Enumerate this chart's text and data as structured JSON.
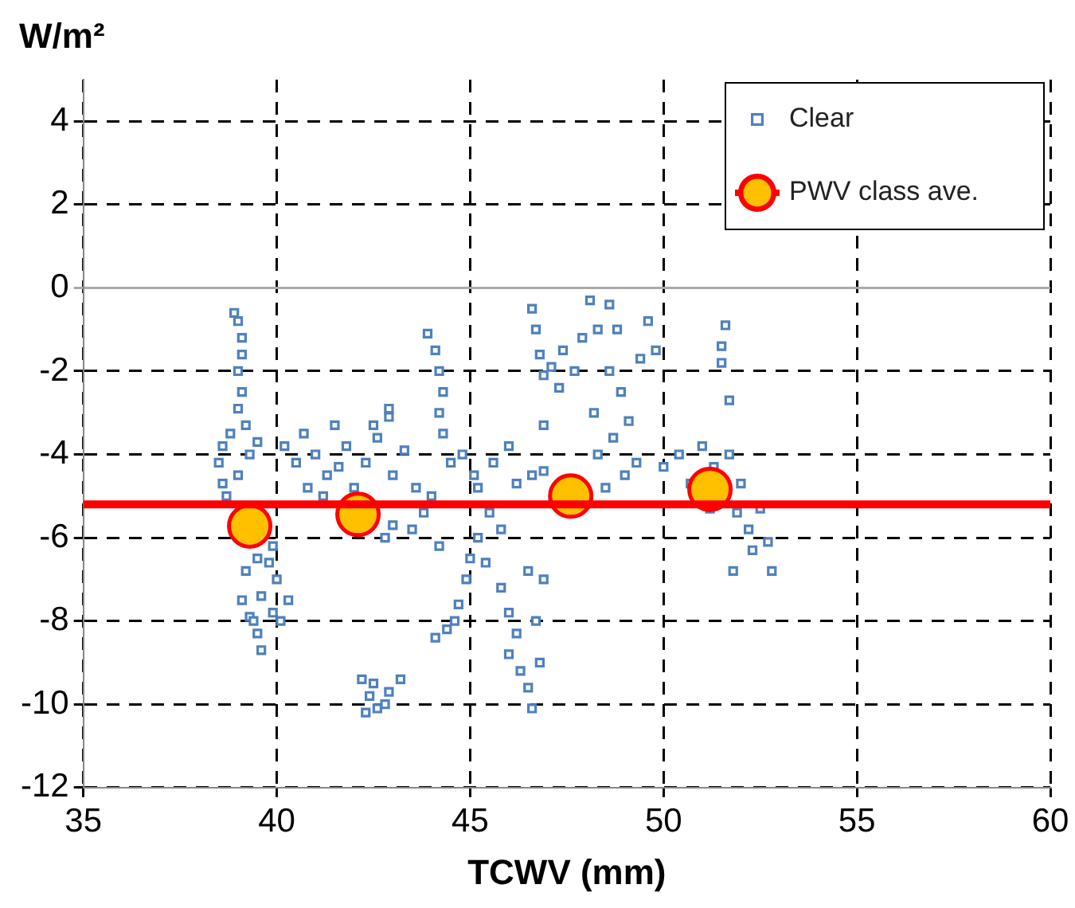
{
  "chart_data": {
    "type": "scatter",
    "xlabel": "TCWV (mm)",
    "ylabel": "W/m²",
    "xlim": [
      35,
      60
    ],
    "xticks": [
      35,
      40,
      45,
      50,
      55,
      60
    ],
    "ylim": [
      -12,
      5
    ],
    "yticks": [
      -12,
      -10,
      -8,
      -6,
      -4,
      -2,
      0,
      2,
      4
    ],
    "grid": true,
    "legend": "top right",
    "ref_lines": [
      {
        "axis": "y",
        "value": -5.2,
        "color": "#ff0000"
      }
    ],
    "series": [
      {
        "name": "Clear",
        "color": "#4f81bd",
        "marker": "square",
        "x": [
          38.9,
          39.0,
          39.1,
          39.1,
          39.0,
          39.1,
          39.0,
          39.2,
          38.8,
          38.6,
          38.5,
          38.6,
          38.7,
          39.0,
          39.3,
          39.5,
          39.2,
          39.5,
          39.8,
          40.0,
          39.1,
          39.3,
          39.6,
          39.9,
          40.3,
          39.5,
          39.6,
          39.4,
          40.1,
          39.9,
          40.2,
          40.5,
          40.8,
          41.0,
          41.3,
          41.6,
          41.8,
          42.0,
          42.3,
          42.6,
          42.9,
          42.5,
          43.0,
          43.3,
          43.6,
          43.8,
          43.5,
          44.0,
          44.2,
          43.0,
          42.8,
          41.2,
          41.5,
          40.7,
          42.9,
          43.9,
          44.1,
          44.2,
          44.3,
          44.2,
          44.3,
          44.5,
          44.8,
          45.1,
          42.2,
          42.4,
          42.6,
          42.9,
          43.2,
          42.5,
          42.8,
          42.3,
          44.1,
          44.4,
          44.7,
          44.9,
          45.0,
          44.6,
          45.2,
          45.5,
          45.2,
          45.4,
          45.8,
          46.0,
          46.2,
          46.0,
          46.3,
          46.5,
          46.6,
          46.8,
          46.7,
          46.9,
          46.5,
          45.8,
          46.2,
          45.6,
          46.0,
          46.6,
          46.9,
          46.9,
          46.6,
          46.7,
          46.8,
          47.1,
          47.4,
          47.7,
          47.3,
          46.9,
          47.9,
          48.1,
          48.3,
          48.6,
          48.8,
          48.2,
          48.3,
          48.5,
          48.7,
          48.9,
          49.1,
          49.3,
          49.0,
          48.6,
          49.4,
          49.6,
          49.8,
          50.0,
          50.4,
          50.7,
          51.0,
          51.3,
          51.7,
          51.6,
          51.5,
          51.5,
          51.7,
          51.9,
          51.8,
          52.2,
          52.5,
          52.7,
          52.8,
          52.3,
          51.2,
          52.0
        ],
        "values": [
          -0.6,
          -0.8,
          -1.2,
          -1.6,
          -2.0,
          -2.5,
          -2.9,
          -3.3,
          -3.5,
          -3.8,
          -4.2,
          -4.7,
          -5.0,
          -4.5,
          -4.0,
          -3.7,
          -6.8,
          -6.5,
          -6.6,
          -7.0,
          -7.5,
          -7.9,
          -7.4,
          -7.8,
          -7.5,
          -8.3,
          -8.7,
          -8.0,
          -8.0,
          -6.2,
          -3.8,
          -4.2,
          -4.8,
          -4.0,
          -4.5,
          -4.3,
          -3.8,
          -4.8,
          -4.2,
          -3.6,
          -3.1,
          -3.3,
          -4.5,
          -3.9,
          -4.8,
          -5.4,
          -5.8,
          -5.0,
          -6.2,
          -5.7,
          -6.0,
          -5.0,
          -3.3,
          -3.5,
          -2.9,
          -1.1,
          -1.5,
          -2.0,
          -2.5,
          -3.0,
          -3.5,
          -4.2,
          -4.0,
          -4.5,
          -9.4,
          -9.8,
          -10.1,
          -9.7,
          -9.4,
          -9.5,
          -10.0,
          -10.2,
          -8.4,
          -8.2,
          -7.6,
          -7.0,
          -6.5,
          -8.0,
          -4.8,
          -5.4,
          -6.0,
          -6.6,
          -7.2,
          -7.8,
          -8.3,
          -8.8,
          -9.2,
          -9.6,
          -10.1,
          -9.0,
          -8.0,
          -7.0,
          -6.8,
          -5.8,
          -4.7,
          -4.2,
          -3.8,
          -4.5,
          -3.3,
          -4.4,
          -0.5,
          -1.0,
          -1.6,
          -1.9,
          -1.5,
          -2.0,
          -2.4,
          -2.1,
          -1.2,
          -0.3,
          -1.0,
          -0.4,
          -1.0,
          -3.0,
          -4.0,
          -4.8,
          -3.6,
          -2.5,
          -3.2,
          -4.2,
          -4.5,
          -2.0,
          -1.7,
          -0.8,
          -1.5,
          -4.3,
          -4.0,
          -4.7,
          -3.8,
          -4.3,
          -4.0,
          -0.9,
          -1.4,
          -1.8,
          -2.7,
          -5.4,
          -6.8,
          -5.8,
          -5.3,
          -6.1,
          -6.8,
          -6.3,
          -5.3,
          -4.7
        ]
      },
      {
        "name": "PWV class ave.",
        "color": "#ffc000",
        "marker": "circle",
        "x": [
          39.3,
          42.1,
          47.6,
          51.2
        ],
        "values": [
          -5.72,
          -5.44,
          -5.0,
          -4.84
        ]
      }
    ]
  }
}
